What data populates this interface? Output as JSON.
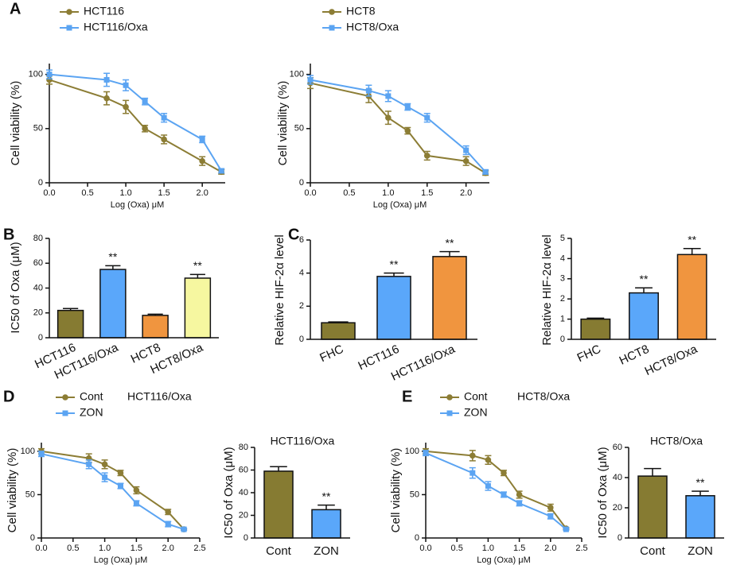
{
  "panels": [
    "A",
    "B",
    "C",
    "D",
    "E"
  ],
  "chart_data": [
    {
      "type": "line",
      "x_label": "Log (Oxa) μM",
      "y_label": "Cell viability (%)",
      "x": [
        0,
        0.75,
        1.0,
        1.25,
        1.5,
        2.0,
        2.25
      ],
      "xlim": [
        0,
        2.3
      ],
      "xticks": [
        {
          "value": 0,
          "label": "0.0"
        },
        {
          "value": 0.5,
          "label": "0.5"
        },
        {
          "value": 1,
          "label": "1.0"
        },
        {
          "value": 1.5,
          "label": "1.5"
        },
        {
          "value": 2,
          "label": "2.0"
        }
      ],
      "ylim": [
        0,
        110
      ],
      "yticks": [
        0,
        50,
        100
      ],
      "series": [
        {
          "name": "HCT116",
          "color": "#8c7d35",
          "marker": "circle",
          "values": [
            95,
            78,
            70,
            50,
            40,
            20,
            10
          ],
          "errors": [
            4,
            6,
            6,
            3,
            4,
            4,
            2
          ]
        },
        {
          "name": "HCT116/Oxa",
          "color": "#5ba4f2",
          "marker": "square",
          "values": [
            100,
            95,
            90,
            75,
            60,
            40,
            11
          ],
          "errors": [
            4,
            6,
            5,
            3,
            4,
            3,
            2
          ]
        }
      ]
    },
    {
      "type": "line",
      "x_label": "Log (Oxa) μM",
      "y_label": "Cell viability (%)",
      "x": [
        0,
        0.75,
        1.0,
        1.25,
        1.5,
        2.0,
        2.25
      ],
      "xlim": [
        0,
        2.3
      ],
      "xticks": [
        {
          "value": 0,
          "label": "0.0"
        },
        {
          "value": 0.5,
          "label": "0.5"
        },
        {
          "value": 1,
          "label": "1.0"
        },
        {
          "value": 1.5,
          "label": "1.5"
        },
        {
          "value": 2,
          "label": "2.0"
        }
      ],
      "ylim": [
        0,
        110
      ],
      "yticks": [
        0,
        50,
        100
      ],
      "series": [
        {
          "name": "HCT8",
          "color": "#8c7d35",
          "marker": "circle",
          "values": [
            92,
            80,
            60,
            48,
            25,
            20,
            9
          ],
          "errors": [
            5,
            6,
            6,
            3,
            4,
            4,
            2
          ]
        },
        {
          "name": "HCT8/Oxa",
          "color": "#5ba4f2",
          "marker": "square",
          "values": [
            95,
            85,
            80,
            70,
            60,
            30,
            10
          ],
          "errors": [
            4,
            5,
            5,
            3,
            4,
            4,
            2
          ]
        }
      ]
    },
    {
      "type": "bar",
      "y_label": "IC50 of Oxa (μM)",
      "categories": [
        "HCT116",
        "HCT116/Oxa",
        "HCT8",
        "HCT8/Oxa"
      ],
      "values": [
        22,
        55,
        18,
        48
      ],
      "errors": [
        1.5,
        3,
        1,
        3
      ],
      "colors": [
        "#867b32",
        "#5aa7fa",
        "#f0953f",
        "#f6f7a0"
      ],
      "significance": [
        null,
        "**",
        null,
        "**"
      ],
      "ylim": [
        0,
        80
      ],
      "yticks": [
        0,
        20,
        40,
        60,
        80
      ]
    },
    {
      "type": "bar",
      "y_label": "Relative HIF-2α level",
      "categories": [
        "FHC",
        "HCT116",
        "HCT116/Oxa"
      ],
      "values": [
        1.0,
        3.8,
        5.0
      ],
      "errors": [
        0.05,
        0.2,
        0.3
      ],
      "colors": [
        "#867b32",
        "#5aa7fa",
        "#f0953f"
      ],
      "significance": [
        null,
        "**",
        "**"
      ],
      "ylim": [
        0,
        6
      ],
      "yticks": [
        0,
        2,
        4,
        6
      ]
    },
    {
      "type": "bar",
      "y_label": "Relative HIF-2α level",
      "categories": [
        "FHC",
        "HCT8",
        "HCT8/Oxa"
      ],
      "values": [
        1.0,
        2.3,
        4.2
      ],
      "errors": [
        0.05,
        0.25,
        0.3
      ],
      "colors": [
        "#867b32",
        "#5aa7fa",
        "#f0953f"
      ],
      "significance": [
        null,
        "**",
        "**"
      ],
      "ylim": [
        0,
        5
      ],
      "yticks": [
        0,
        1,
        2,
        3,
        4,
        5
      ]
    },
    {
      "type": "line",
      "title": "HCT116/Oxa",
      "x_label": "Log (Oxa) μM",
      "y_label": "Cell viability (%)",
      "x": [
        0,
        0.75,
        1.0,
        1.25,
        1.5,
        2.0,
        2.25
      ],
      "xlim": [
        0,
        2.5
      ],
      "xticks": [
        {
          "value": 0,
          "label": "0.0"
        },
        {
          "value": 0.5,
          "label": "0.5"
        },
        {
          "value": 1,
          "label": "1.0"
        },
        {
          "value": 1.5,
          "label": "1.5"
        },
        {
          "value": 2,
          "label": "2.0"
        },
        {
          "value": 2.5,
          "label": "2.5"
        }
      ],
      "ylim": [
        0,
        110
      ],
      "yticks": [
        0,
        50,
        100
      ],
      "series": [
        {
          "name": "Cont",
          "color": "#8c7d35",
          "marker": "circle",
          "values": [
            100,
            92,
            85,
            75,
            55,
            30,
            10
          ],
          "errors": [
            3,
            5,
            5,
            3,
            4,
            3,
            1
          ]
        },
        {
          "name": "ZON",
          "color": "#5ba4f2",
          "marker": "square",
          "values": [
            97,
            85,
            70,
            60,
            40,
            16,
            10
          ],
          "errors": [
            3,
            5,
            5,
            3,
            3,
            3,
            1
          ]
        }
      ]
    },
    {
      "type": "bar",
      "title": "HCT116/Oxa",
      "y_label": "IC50 of Oxa (μM)",
      "categories": [
        "Cont",
        "ZON"
      ],
      "values": [
        59,
        25
      ],
      "errors": [
        4,
        4
      ],
      "colors": [
        "#867b32",
        "#5aa7fa"
      ],
      "significance": [
        null,
        "**"
      ],
      "ylim": [
        0,
        80
      ],
      "yticks": [
        0,
        20,
        40,
        60,
        80
      ]
    },
    {
      "type": "line",
      "title": "HCT8/Oxa",
      "x_label": "Log (Oxa) μM",
      "y_label": "Cell viability (%)",
      "x": [
        0,
        0.75,
        1.0,
        1.25,
        1.5,
        2.0,
        2.25
      ],
      "xlim": [
        0,
        2.5
      ],
      "xticks": [
        {
          "value": 0,
          "label": "0.0"
        },
        {
          "value": 0.5,
          "label": "0.5"
        },
        {
          "value": 1,
          "label": "1.0"
        },
        {
          "value": 1.5,
          "label": "1.5"
        },
        {
          "value": 2,
          "label": "2.0"
        },
        {
          "value": 2.5,
          "label": "2.5"
        }
      ],
      "ylim": [
        0,
        110
      ],
      "yticks": [
        0,
        50,
        100
      ],
      "series": [
        {
          "name": "Cont",
          "color": "#8c7d35",
          "marker": "circle",
          "values": [
            100,
            95,
            90,
            75,
            50,
            35,
            11
          ],
          "errors": [
            3,
            6,
            5,
            3,
            4,
            4,
            1
          ]
        },
        {
          "name": "ZON",
          "color": "#5ba4f2",
          "marker": "square",
          "values": [
            98,
            75,
            60,
            50,
            40,
            25,
            10
          ],
          "errors": [
            3,
            6,
            5,
            3,
            3,
            3,
            1
          ]
        }
      ]
    },
    {
      "type": "bar",
      "title": "HCT8/Oxa",
      "y_label": "IC50 of Oxa (μM)",
      "categories": [
        "Cont",
        "ZON"
      ],
      "values": [
        41,
        28
      ],
      "errors": [
        5,
        3
      ],
      "colors": [
        "#867b32",
        "#5aa7fa"
      ],
      "significance": [
        null,
        "**"
      ],
      "ylim": [
        0,
        60
      ],
      "yticks": [
        0,
        20,
        40,
        60
      ]
    }
  ]
}
